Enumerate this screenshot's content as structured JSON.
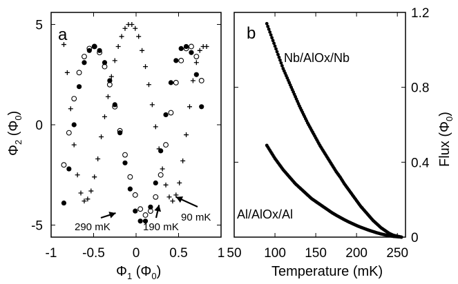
{
  "chart_data": [
    {
      "panel_label": "a",
      "type": "scatter",
      "xlabel_main": "Φ",
      "xlabel_sub": "1",
      "xlabel_unit": "(Φ",
      "xlabel_unit_sub": "0",
      "ylabel_main": "Φ",
      "ylabel_sub": "2",
      "ylabel_unit": "(Φ",
      "ylabel_unit_sub": "0",
      "xlim": [
        -1,
        1
      ],
      "ylim": [
        -5.6,
        5.6
      ],
      "xticks": [
        -1,
        -0.5,
        0,
        0.5,
        1
      ],
      "xtick_labels": [
        "-1",
        "-0.5",
        "0",
        "0.5",
        "1"
      ],
      "yticks": [
        -5,
        0,
        5
      ],
      "ytick_labels": [
        "-5",
        "0",
        "5"
      ],
      "series": [
        {
          "name": "90 mK",
          "marker": "plus",
          "x": [
            -0.85,
            -0.81,
            -0.77,
            -0.73,
            -0.69,
            -0.65,
            -0.61,
            -0.57,
            -0.53,
            -0.49,
            -0.45,
            -0.41,
            -0.37,
            -0.33,
            -0.29,
            -0.25,
            -0.21,
            -0.17,
            -0.13,
            -0.09,
            -0.05,
            -0.01,
            0.03,
            0.07,
            0.11,
            0.15,
            0.19,
            0.23,
            0.27,
            0.31,
            0.35,
            0.39,
            0.43,
            0.47,
            0.51,
            0.55,
            0.59,
            0.63,
            0.67,
            0.71,
            0.75,
            0.79,
            0.83
          ],
          "y": [
            4.0,
            2.6,
            0.8,
            -1.0,
            -2.5,
            -3.4,
            -3.8,
            -3.7,
            -3.3,
            -2.6,
            -1.7,
            -0.6,
            0.4,
            1.4,
            2.4,
            3.2,
            3.9,
            4.4,
            4.8,
            5.0,
            5.0,
            4.8,
            4.4,
            3.7,
            2.9,
            2.0,
            1.0,
            -0.1,
            -1.2,
            -2.2,
            -3.0,
            -3.6,
            -3.8,
            -3.5,
            -2.9,
            -1.8,
            -0.5,
            0.9,
            2.2,
            3.1,
            3.7,
            3.9,
            3.9
          ]
        },
        {
          "name": "190 mK",
          "marker": "open-circle",
          "x": [
            -0.85,
            -0.79,
            -0.73,
            -0.67,
            -0.61,
            -0.55,
            -0.49,
            -0.43,
            -0.37,
            -0.31,
            -0.25,
            -0.19,
            -0.13,
            -0.07,
            -0.01,
            0.05,
            0.11,
            0.17,
            0.23,
            0.29,
            0.35,
            0.41,
            0.47,
            0.53,
            0.59,
            0.65,
            0.71,
            0.77
          ],
          "y": [
            -2.0,
            -0.4,
            1.3,
            2.6,
            3.4,
            3.8,
            3.9,
            3.6,
            2.9,
            2.0,
            0.9,
            -0.3,
            -1.5,
            -2.6,
            -3.5,
            -4.2,
            -4.5,
            -4.3,
            -3.6,
            -2.5,
            -1.0,
            0.6,
            2.1,
            3.2,
            3.8,
            3.9,
            3.4,
            2.2
          ]
        },
        {
          "name": "290 mK",
          "marker": "filled-circle",
          "x": [
            -0.85,
            -0.79,
            -0.73,
            -0.67,
            -0.61,
            -0.55,
            -0.49,
            -0.43,
            -0.37,
            -0.31,
            -0.25,
            -0.19,
            -0.13,
            -0.07,
            -0.01,
            0.05,
            0.11,
            0.17,
            0.23,
            0.29,
            0.35,
            0.41,
            0.47,
            0.53,
            0.59,
            0.65,
            0.71,
            0.77
          ],
          "y": [
            -3.9,
            -2.2,
            0.0,
            1.9,
            3.1,
            3.7,
            3.9,
            3.7,
            3.1,
            2.2,
            1.0,
            -0.4,
            -1.9,
            -3.2,
            -4.3,
            -4.8,
            -4.8,
            -4.1,
            -2.9,
            -1.3,
            0.5,
            2.1,
            3.2,
            3.8,
            3.9,
            3.6,
            2.5,
            0.9
          ]
        }
      ],
      "annotations": [
        {
          "text": "290 mK",
          "points_to": [
            -0.24,
            -4.4
          ]
        },
        {
          "text": "190 mK",
          "points_to": [
            0.27,
            -4.0
          ]
        },
        {
          "text": "90 mK",
          "points_to": [
            0.47,
            -3.6
          ]
        }
      ]
    },
    {
      "panel_label": "b",
      "type": "scatter",
      "xlabel": "Temperature (mK)",
      "ylabel_main": "Flux (Φ",
      "ylabel_sub": "0",
      "ylabel_close": ")",
      "xlim": [
        50,
        260
      ],
      "ylim": [
        0,
        1.2
      ],
      "xticks": [
        50,
        100,
        150,
        200,
        250
      ],
      "xtick_labels": [
        "50",
        "100",
        "150",
        "200",
        "250"
      ],
      "yticks": [
        0,
        0.4,
        0.8,
        1.2
      ],
      "ytick_labels": [
        "0",
        "0.4",
        "0.8",
        "1.2"
      ],
      "series": [
        {
          "name": "Nb/AlOx/Nb",
          "x": [
            90,
            95,
            100,
            105,
            110,
            115,
            120,
            125,
            130,
            135,
            140,
            145,
            150,
            155,
            160,
            165,
            170,
            175,
            180,
            185,
            190,
            195,
            200,
            205,
            210,
            215,
            220,
            225,
            230,
            235,
            240,
            245,
            250,
            255
          ],
          "y": [
            1.14,
            1.08,
            1.02,
            0.96,
            0.9,
            0.85,
            0.8,
            0.75,
            0.7,
            0.655,
            0.61,
            0.57,
            0.53,
            0.49,
            0.455,
            0.42,
            0.385,
            0.35,
            0.32,
            0.285,
            0.255,
            0.225,
            0.195,
            0.165,
            0.14,
            0.115,
            0.09,
            0.07,
            0.05,
            0.035,
            0.02,
            0.01,
            0.005,
            0.0
          ]
        },
        {
          "name": "Al/AlOx/Al",
          "x": [
            90,
            95,
            100,
            105,
            110,
            115,
            120,
            125,
            130,
            135,
            140,
            145,
            150,
            155,
            160,
            165,
            170,
            175,
            180,
            185,
            190,
            195,
            200,
            205,
            210,
            215,
            220,
            225,
            230,
            235,
            240,
            245,
            250,
            255
          ],
          "y": [
            0.49,
            0.455,
            0.42,
            0.39,
            0.36,
            0.335,
            0.31,
            0.285,
            0.265,
            0.245,
            0.225,
            0.205,
            0.19,
            0.175,
            0.16,
            0.145,
            0.13,
            0.117,
            0.105,
            0.093,
            0.082,
            0.072,
            0.062,
            0.053,
            0.045,
            0.037,
            0.03,
            0.023,
            0.017,
            0.012,
            0.008,
            0.004,
            0.002,
            0.0
          ]
        }
      ]
    }
  ]
}
